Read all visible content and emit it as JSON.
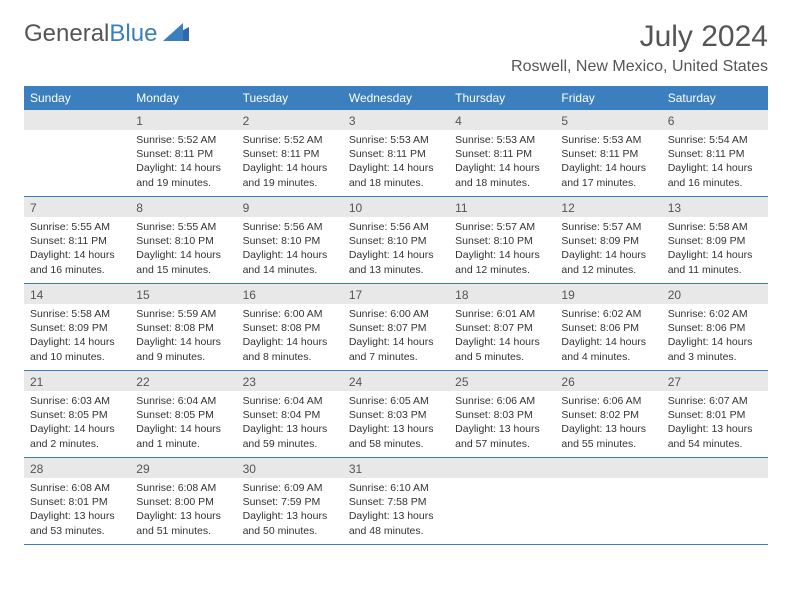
{
  "logo": {
    "text_gray": "General",
    "text_blue": "Blue"
  },
  "title": "July 2024",
  "location": "Roswell, New Mexico, United States",
  "colors": {
    "header_bg": "#3b7fbf",
    "header_text": "#ffffff",
    "daynum_bg": "#e8e8e8",
    "text": "#333333",
    "title_text": "#555555",
    "border": "#3b7fbf",
    "page_bg": "#ffffff"
  },
  "fonts": {
    "title_size_pt": 22,
    "location_size_pt": 12,
    "header_size_pt": 9,
    "daynum_size_pt": 9,
    "body_size_pt": 8
  },
  "day_labels": [
    "Sunday",
    "Monday",
    "Tuesday",
    "Wednesday",
    "Thursday",
    "Friday",
    "Saturday"
  ],
  "weeks": [
    [
      {
        "n": "",
        "sunrise": "",
        "sunset": "",
        "daylight": "",
        "empty": true
      },
      {
        "n": "1",
        "sunrise": "Sunrise: 5:52 AM",
        "sunset": "Sunset: 8:11 PM",
        "daylight": "Daylight: 14 hours and 19 minutes."
      },
      {
        "n": "2",
        "sunrise": "Sunrise: 5:52 AM",
        "sunset": "Sunset: 8:11 PM",
        "daylight": "Daylight: 14 hours and 19 minutes."
      },
      {
        "n": "3",
        "sunrise": "Sunrise: 5:53 AM",
        "sunset": "Sunset: 8:11 PM",
        "daylight": "Daylight: 14 hours and 18 minutes."
      },
      {
        "n": "4",
        "sunrise": "Sunrise: 5:53 AM",
        "sunset": "Sunset: 8:11 PM",
        "daylight": "Daylight: 14 hours and 18 minutes."
      },
      {
        "n": "5",
        "sunrise": "Sunrise: 5:53 AM",
        "sunset": "Sunset: 8:11 PM",
        "daylight": "Daylight: 14 hours and 17 minutes."
      },
      {
        "n": "6",
        "sunrise": "Sunrise: 5:54 AM",
        "sunset": "Sunset: 8:11 PM",
        "daylight": "Daylight: 14 hours and 16 minutes."
      }
    ],
    [
      {
        "n": "7",
        "sunrise": "Sunrise: 5:55 AM",
        "sunset": "Sunset: 8:11 PM",
        "daylight": "Daylight: 14 hours and 16 minutes."
      },
      {
        "n": "8",
        "sunrise": "Sunrise: 5:55 AM",
        "sunset": "Sunset: 8:10 PM",
        "daylight": "Daylight: 14 hours and 15 minutes."
      },
      {
        "n": "9",
        "sunrise": "Sunrise: 5:56 AM",
        "sunset": "Sunset: 8:10 PM",
        "daylight": "Daylight: 14 hours and 14 minutes."
      },
      {
        "n": "10",
        "sunrise": "Sunrise: 5:56 AM",
        "sunset": "Sunset: 8:10 PM",
        "daylight": "Daylight: 14 hours and 13 minutes."
      },
      {
        "n": "11",
        "sunrise": "Sunrise: 5:57 AM",
        "sunset": "Sunset: 8:10 PM",
        "daylight": "Daylight: 14 hours and 12 minutes."
      },
      {
        "n": "12",
        "sunrise": "Sunrise: 5:57 AM",
        "sunset": "Sunset: 8:09 PM",
        "daylight": "Daylight: 14 hours and 12 minutes."
      },
      {
        "n": "13",
        "sunrise": "Sunrise: 5:58 AM",
        "sunset": "Sunset: 8:09 PM",
        "daylight": "Daylight: 14 hours and 11 minutes."
      }
    ],
    [
      {
        "n": "14",
        "sunrise": "Sunrise: 5:58 AM",
        "sunset": "Sunset: 8:09 PM",
        "daylight": "Daylight: 14 hours and 10 minutes."
      },
      {
        "n": "15",
        "sunrise": "Sunrise: 5:59 AM",
        "sunset": "Sunset: 8:08 PM",
        "daylight": "Daylight: 14 hours and 9 minutes."
      },
      {
        "n": "16",
        "sunrise": "Sunrise: 6:00 AM",
        "sunset": "Sunset: 8:08 PM",
        "daylight": "Daylight: 14 hours and 8 minutes."
      },
      {
        "n": "17",
        "sunrise": "Sunrise: 6:00 AM",
        "sunset": "Sunset: 8:07 PM",
        "daylight": "Daylight: 14 hours and 7 minutes."
      },
      {
        "n": "18",
        "sunrise": "Sunrise: 6:01 AM",
        "sunset": "Sunset: 8:07 PM",
        "daylight": "Daylight: 14 hours and 5 minutes."
      },
      {
        "n": "19",
        "sunrise": "Sunrise: 6:02 AM",
        "sunset": "Sunset: 8:06 PM",
        "daylight": "Daylight: 14 hours and 4 minutes."
      },
      {
        "n": "20",
        "sunrise": "Sunrise: 6:02 AM",
        "sunset": "Sunset: 8:06 PM",
        "daylight": "Daylight: 14 hours and 3 minutes."
      }
    ],
    [
      {
        "n": "21",
        "sunrise": "Sunrise: 6:03 AM",
        "sunset": "Sunset: 8:05 PM",
        "daylight": "Daylight: 14 hours and 2 minutes."
      },
      {
        "n": "22",
        "sunrise": "Sunrise: 6:04 AM",
        "sunset": "Sunset: 8:05 PM",
        "daylight": "Daylight: 14 hours and 1 minute."
      },
      {
        "n": "23",
        "sunrise": "Sunrise: 6:04 AM",
        "sunset": "Sunset: 8:04 PM",
        "daylight": "Daylight: 13 hours and 59 minutes."
      },
      {
        "n": "24",
        "sunrise": "Sunrise: 6:05 AM",
        "sunset": "Sunset: 8:03 PM",
        "daylight": "Daylight: 13 hours and 58 minutes."
      },
      {
        "n": "25",
        "sunrise": "Sunrise: 6:06 AM",
        "sunset": "Sunset: 8:03 PM",
        "daylight": "Daylight: 13 hours and 57 minutes."
      },
      {
        "n": "26",
        "sunrise": "Sunrise: 6:06 AM",
        "sunset": "Sunset: 8:02 PM",
        "daylight": "Daylight: 13 hours and 55 minutes."
      },
      {
        "n": "27",
        "sunrise": "Sunrise: 6:07 AM",
        "sunset": "Sunset: 8:01 PM",
        "daylight": "Daylight: 13 hours and 54 minutes."
      }
    ],
    [
      {
        "n": "28",
        "sunrise": "Sunrise: 6:08 AM",
        "sunset": "Sunset: 8:01 PM",
        "daylight": "Daylight: 13 hours and 53 minutes."
      },
      {
        "n": "29",
        "sunrise": "Sunrise: 6:08 AM",
        "sunset": "Sunset: 8:00 PM",
        "daylight": "Daylight: 13 hours and 51 minutes."
      },
      {
        "n": "30",
        "sunrise": "Sunrise: 6:09 AM",
        "sunset": "Sunset: 7:59 PM",
        "daylight": "Daylight: 13 hours and 50 minutes."
      },
      {
        "n": "31",
        "sunrise": "Sunrise: 6:10 AM",
        "sunset": "Sunset: 7:58 PM",
        "daylight": "Daylight: 13 hours and 48 minutes."
      },
      {
        "n": "",
        "sunrise": "",
        "sunset": "",
        "daylight": "",
        "empty": true
      },
      {
        "n": "",
        "sunrise": "",
        "sunset": "",
        "daylight": "",
        "empty": true
      },
      {
        "n": "",
        "sunrise": "",
        "sunset": "",
        "daylight": "",
        "empty": true
      }
    ]
  ]
}
